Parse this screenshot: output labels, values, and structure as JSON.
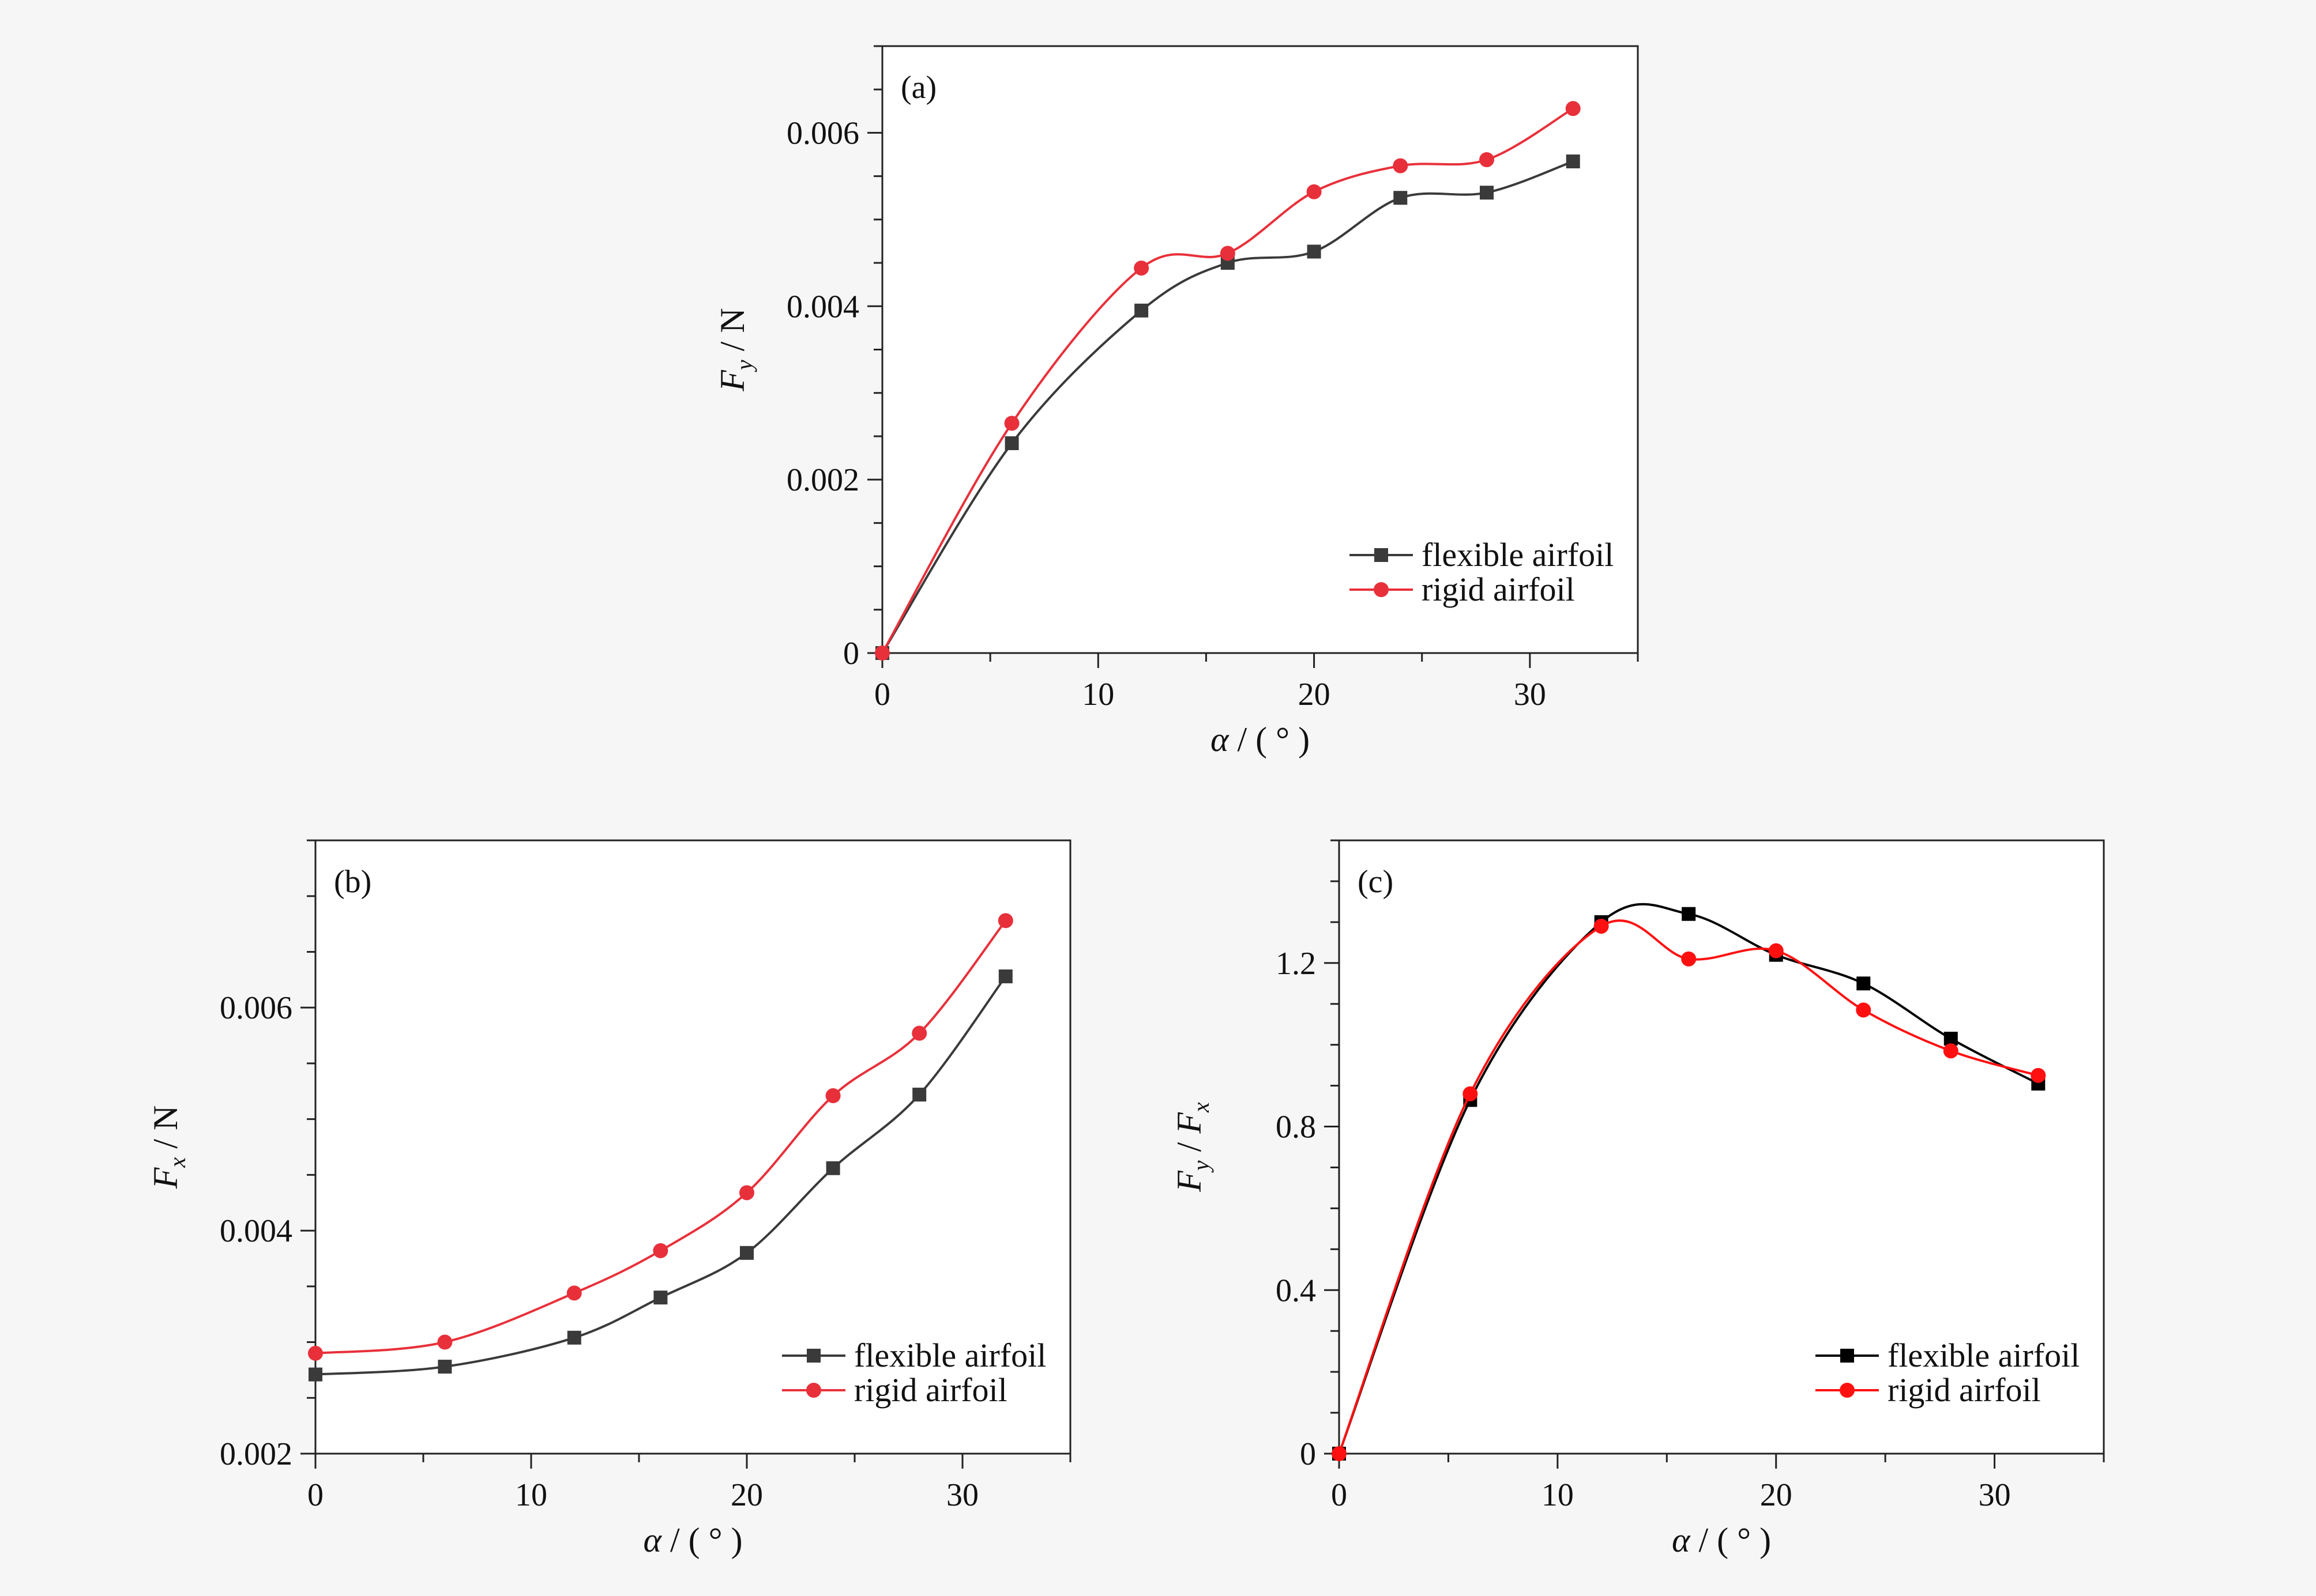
{
  "colors": {
    "flexible": "#3a3a3a",
    "rigid": "#e8303a",
    "flexible_c": "#000000",
    "rigid_c": "#ff1010",
    "axis": "#222222"
  },
  "chart_data": [
    {
      "type": "line",
      "panel": "(a)",
      "xlabel_sym": "α",
      "xlabel_rest": " / ( ° )",
      "ylabel_sym": "F",
      "ylabel_sub": "y",
      "ylabel_rest": " / N",
      "xlim": [
        0,
        35
      ],
      "ylim": [
        0,
        0.007
      ],
      "xticks": [
        0,
        10,
        20,
        30
      ],
      "xtick_labels": [
        "0",
        "10",
        "20",
        "30"
      ],
      "yticks": [
        0,
        0.002,
        0.004,
        0.006
      ],
      "ytick_labels": [
        "0",
        "0.002",
        "0.004",
        "0.006"
      ],
      "legend_position": "bottom-right",
      "series": [
        {
          "name": "flexible airfoil",
          "marker": "square",
          "x": [
            0,
            6,
            12,
            16,
            20,
            24,
            28,
            32
          ],
          "y": [
            0,
            0.00242,
            0.00395,
            0.0045,
            0.00463,
            0.00525,
            0.00531,
            0.00567
          ]
        },
        {
          "name": "rigid airfoil",
          "marker": "circle",
          "x": [
            0,
            6,
            12,
            16,
            20,
            24,
            28,
            32
          ],
          "y": [
            0,
            0.00265,
            0.00444,
            0.00461,
            0.00532,
            0.00562,
            0.00569,
            0.00628
          ]
        }
      ]
    },
    {
      "type": "line",
      "panel": "(b)",
      "xlabel_sym": "α",
      "xlabel_rest": " / ( ° )",
      "ylabel_sym": "F",
      "ylabel_sub": "x",
      "ylabel_rest": " / N",
      "xlim": [
        0,
        35
      ],
      "ylim": [
        0.002,
        0.0075
      ],
      "xticks": [
        0,
        10,
        20,
        30
      ],
      "xtick_labels": [
        "0",
        "10",
        "20",
        "30"
      ],
      "yticks": [
        0.002,
        0.004,
        0.006
      ],
      "ytick_labels": [
        "0.002",
        "0.004",
        "0.006"
      ],
      "legend_position": "bottom-right",
      "series": [
        {
          "name": "flexible airfoil",
          "marker": "square",
          "x": [
            0,
            6,
            12,
            16,
            20,
            24,
            28,
            32
          ],
          "y": [
            0.00271,
            0.00278,
            0.00304,
            0.0034,
            0.0038,
            0.00456,
            0.00522,
            0.00628
          ]
        },
        {
          "name": "rigid airfoil",
          "marker": "circle",
          "x": [
            0,
            6,
            12,
            16,
            20,
            24,
            28,
            32
          ],
          "y": [
            0.0029,
            0.003,
            0.00344,
            0.00382,
            0.00434,
            0.00521,
            0.00577,
            0.00678
          ]
        }
      ]
    },
    {
      "type": "line",
      "panel": "(c)",
      "xlabel_sym": "α",
      "xlabel_rest": " / ( ° )",
      "ylabel_sym": "F",
      "ylabel_sub": "y",
      "ylabel_mid": "  /  ",
      "ylabel_sym2": "F",
      "ylabel_sub2": "x",
      "xlim": [
        0,
        35
      ],
      "ylim": [
        0,
        1.5
      ],
      "xticks": [
        0,
        10,
        20,
        30
      ],
      "xtick_labels": [
        "0",
        "10",
        "20",
        "30"
      ],
      "yticks": [
        0,
        0.4,
        0.8,
        1.2
      ],
      "ytick_labels": [
        "0",
        "0.4",
        "0.8",
        "1.2"
      ],
      "legend_position": "bottom-right",
      "series": [
        {
          "name": "flexible airfoil",
          "marker": "square",
          "x": [
            0,
            6,
            12,
            16,
            20,
            24,
            28,
            32
          ],
          "y": [
            0,
            0.865,
            1.3,
            1.32,
            1.22,
            1.15,
            1.015,
            0.905
          ]
        },
        {
          "name": "rigid airfoil",
          "marker": "circle",
          "x": [
            0,
            6,
            12,
            16,
            20,
            24,
            28,
            32
          ],
          "y": [
            0,
            0.88,
            1.29,
            1.21,
            1.23,
            1.085,
            0.985,
            0.925
          ]
        }
      ]
    }
  ]
}
